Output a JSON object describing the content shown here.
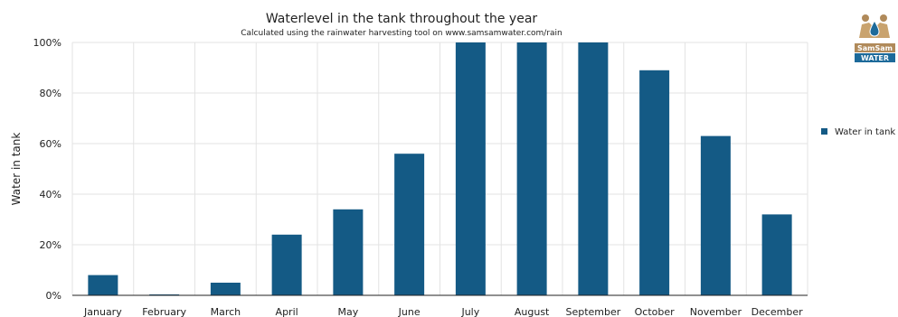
{
  "chart_data": {
    "type": "bar",
    "title": "Waterlevel in the tank throughout the year",
    "subtitle": "Calculated using the rainwater harvesting tool on www.samsamwater.com/rain",
    "ylabel": "Water in tank",
    "xlabel": "",
    "categories": [
      "January",
      "February",
      "March",
      "April",
      "May",
      "June",
      "July",
      "August",
      "September",
      "October",
      "November",
      "December"
    ],
    "series": [
      {
        "name": "Water in tank",
        "values": [
          8,
          0.3,
          5,
          24,
          34,
          56,
          100,
          100,
          100,
          89,
          63,
          32
        ]
      }
    ],
    "ylim": [
      0,
      100
    ],
    "yticks": [
      "0%",
      "20%",
      "40%",
      "60%",
      "80%",
      "100%"
    ],
    "ytick_values": [
      0,
      20,
      40,
      60,
      80,
      100
    ],
    "grid": true,
    "legend_position": "right",
    "color": "#145a85"
  },
  "logo": {
    "line1": "SamSam",
    "line2": "WATER"
  }
}
